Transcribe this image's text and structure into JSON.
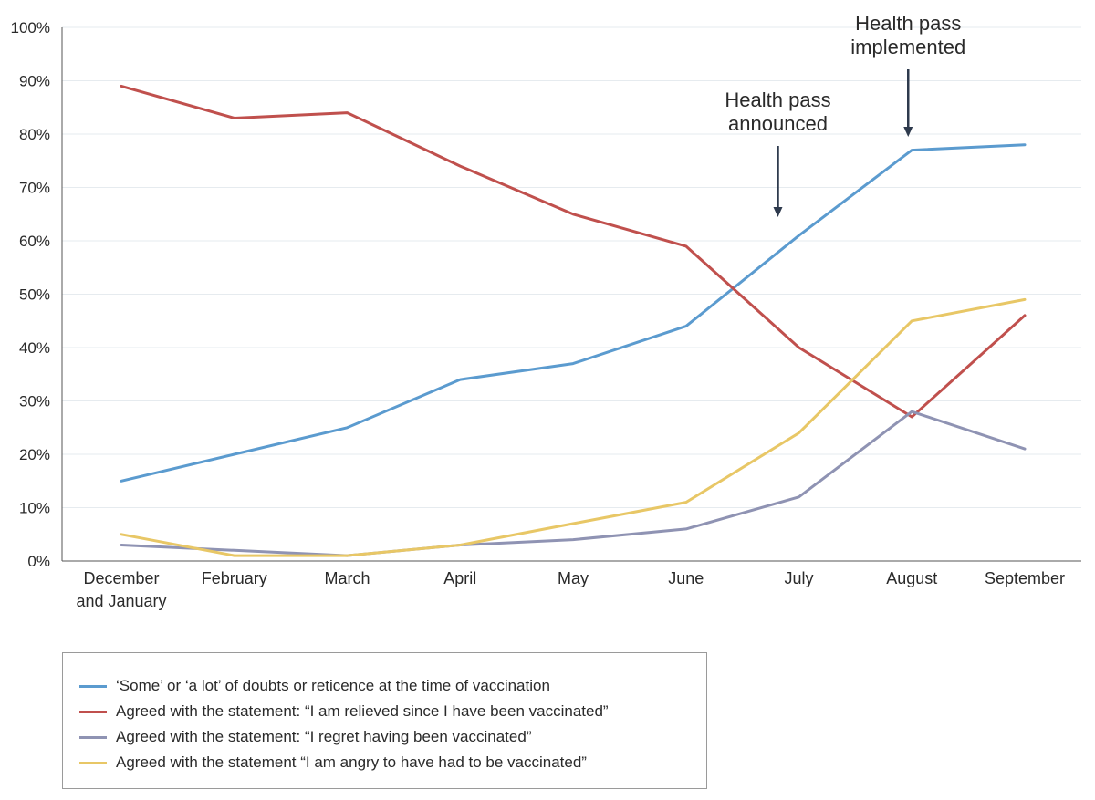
{
  "chart_data": {
    "type": "line",
    "categories": [
      "December and January",
      "February",
      "March",
      "April",
      "May",
      "June",
      "July",
      "August",
      "September"
    ],
    "category_lines": [
      [
        "December",
        "and January"
      ],
      [
        "February"
      ],
      [
        "March"
      ],
      [
        "April"
      ],
      [
        "May"
      ],
      [
        "June"
      ],
      [
        "July"
      ],
      [
        "August"
      ],
      [
        "September"
      ]
    ],
    "ylim": [
      0,
      100
    ],
    "y_ticks": [
      "0%",
      "10%",
      "20%",
      "30%",
      "40%",
      "50%",
      "60%",
      "70%",
      "80%",
      "90%",
      "100%"
    ],
    "grid": true,
    "legend_position": "bottom",
    "series": [
      {
        "name": "‘Some’ or ‘a lot’ of doubts or reticence at the time of vaccination",
        "color": "#5b9bcf",
        "values": [
          15,
          20,
          25,
          34,
          37,
          44,
          61,
          77,
          78
        ]
      },
      {
        "name": "Agreed with the statement: “I am relieved since I have been vaccinated”",
        "color": "#c0504d",
        "values": [
          89,
          83,
          84,
          74,
          65,
          59,
          40,
          27,
          46
        ]
      },
      {
        "name": "Agreed with the statement: “I regret having been vaccinated”",
        "color": "#8f93b3",
        "values": [
          3,
          2,
          1,
          3,
          4,
          6,
          12,
          28,
          21
        ]
      },
      {
        "name": "Agreed with the statement “I am angry to have had to be vaccinated”",
        "color": "#e8c766",
        "values": [
          5,
          1,
          1,
          3,
          7,
          11,
          24,
          45,
          49
        ]
      }
    ],
    "annotations": [
      {
        "lines": [
          "Health pass",
          "announced"
        ],
        "category": "July"
      },
      {
        "lines": [
          "Health pass",
          "implemented"
        ],
        "category": "August"
      }
    ]
  }
}
